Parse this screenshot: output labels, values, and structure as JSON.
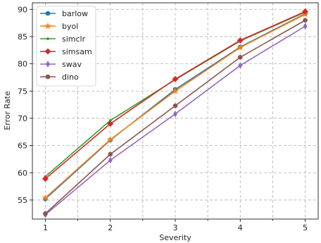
{
  "chart_data": {
    "type": "line",
    "title": "",
    "xlabel": "Severity",
    "ylabel": "Error Rate",
    "x": [
      1,
      2,
      3,
      4,
      5
    ],
    "xticks": [
      "1",
      "2",
      "3",
      "4",
      "5"
    ],
    "xlim": [
      0.8,
      5.2
    ],
    "ylim": [
      51.5,
      91.2
    ],
    "yticks": [
      55,
      60,
      65,
      70,
      75,
      80,
      85,
      90
    ],
    "grid": true,
    "legend_position": "upper-left",
    "series": [
      {
        "name": "barlow",
        "color": "#1f77b4",
        "marker": "circle",
        "values": [
          55.2,
          66.0,
          75.3,
          83.1,
          89.2
        ]
      },
      {
        "name": "byol",
        "color": "#ff7f0e",
        "marker": "star",
        "values": [
          55.4,
          66.1,
          75.0,
          83.0,
          89.1
        ]
      },
      {
        "name": "simclr",
        "color": "#2ca02c",
        "marker": "point",
        "values": [
          59.3,
          69.6,
          77.1,
          84.2,
          89.5
        ]
      },
      {
        "name": "simsam",
        "color": "#d62728",
        "marker": "diamond",
        "values": [
          58.9,
          69.0,
          77.2,
          84.3,
          89.6
        ]
      },
      {
        "name": "swav",
        "color": "#9467bd",
        "marker": "thin-diamond",
        "values": [
          52.3,
          62.3,
          70.8,
          79.7,
          86.9
        ]
      },
      {
        "name": "dino",
        "color": "#8c564b",
        "marker": "circle",
        "values": [
          52.5,
          63.4,
          72.3,
          81.2,
          88.0
        ]
      }
    ]
  }
}
